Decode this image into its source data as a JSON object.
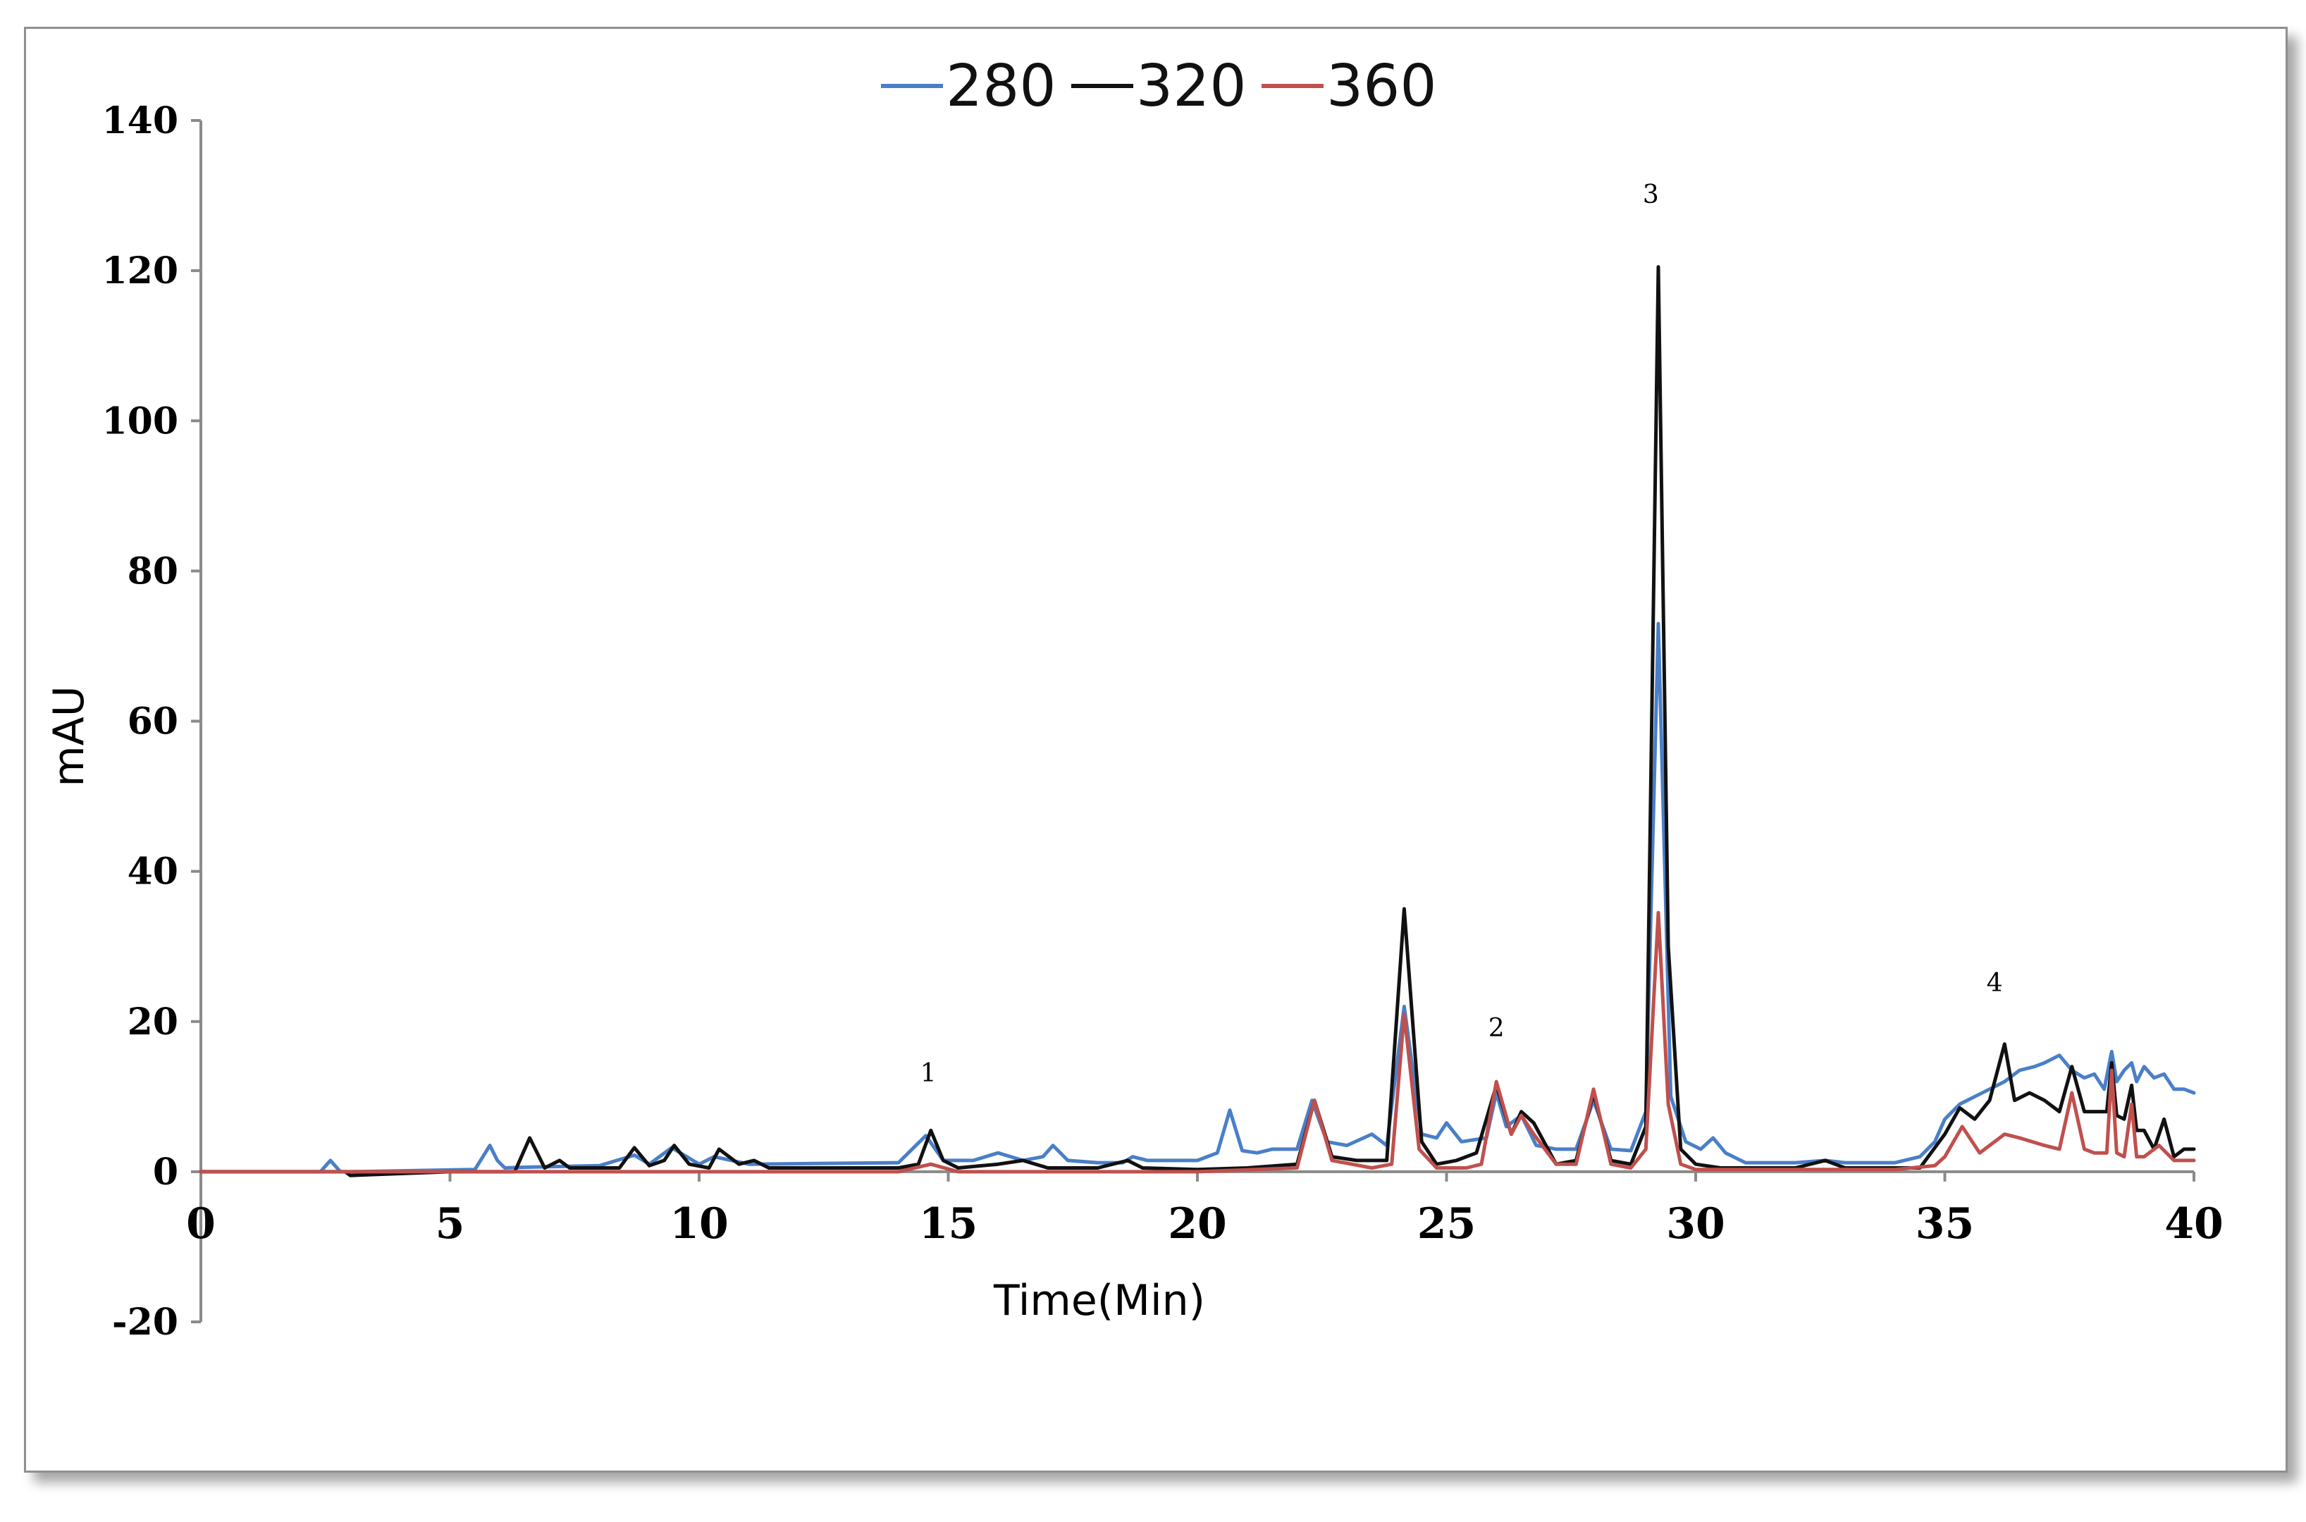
{
  "chart_data": {
    "type": "line",
    "title": "",
    "xlabel": "Time(Min)",
    "ylabel": "mAU",
    "xlim": [
      0,
      40
    ],
    "ylim": [
      -20,
      140
    ],
    "xticks": [
      0,
      5,
      10,
      15,
      20,
      25,
      30,
      35,
      40
    ],
    "yticks": [
      -20,
      0,
      20,
      40,
      60,
      80,
      100,
      120,
      140
    ],
    "grid": false,
    "legend": "top-center",
    "series": [
      {
        "name": "280",
        "color": "#4a7fc8",
        "x": [
          0,
          2.4,
          2.6,
          2.8,
          3.0,
          5.5,
          5.8,
          5.95,
          6.1,
          6.5,
          8.0,
          8.7,
          9.0,
          9.45,
          10.0,
          10.3,
          11.0,
          14.0,
          14.55,
          14.9,
          15.5,
          16.0,
          16.5,
          16.9,
          17.1,
          17.4,
          18.0,
          18.5,
          18.7,
          19.0,
          20.0,
          20.4,
          20.65,
          20.9,
          21.2,
          21.5,
          22.0,
          22.3,
          22.6,
          23.0,
          23.5,
          23.8,
          24.15,
          24.5,
          24.8,
          25.0,
          25.3,
          25.8,
          26.0,
          26.2,
          26.5,
          26.8,
          27.2,
          27.6,
          27.95,
          28.3,
          28.7,
          29.0,
          29.25,
          29.5,
          29.8,
          30.1,
          30.35,
          30.6,
          31.0,
          32.0,
          32.6,
          33.0,
          34.0,
          34.5,
          34.8,
          35.0,
          35.3,
          35.6,
          35.9,
          36.2,
          36.5,
          36.8,
          37.0,
          37.3,
          37.55,
          37.8,
          38.0,
          38.2,
          38.35,
          38.45,
          38.6,
          38.75,
          38.85,
          39.0,
          39.2,
          39.4,
          39.6,
          39.8,
          40.0
        ],
        "values": [
          0,
          0,
          1.5,
          0,
          0,
          0.3,
          3.5,
          1.5,
          0.5,
          0.6,
          0.8,
          2.2,
          1.0,
          3.2,
          1.0,
          2.0,
          1.0,
          1.2,
          4.8,
          1.5,
          1.5,
          2.5,
          1.5,
          2.0,
          3.5,
          1.5,
          1.2,
          1.2,
          2.0,
          1.5,
          1.5,
          2.5,
          8.2,
          2.8,
          2.5,
          3.0,
          3.0,
          9.5,
          4.0,
          3.5,
          5.0,
          3.5,
          22.0,
          5.0,
          4.5,
          6.5,
          4.0,
          4.5,
          10.5,
          6.0,
          7.5,
          3.5,
          3.0,
          3.0,
          9.5,
          3.0,
          2.8,
          8.0,
          73.0,
          10.0,
          4.0,
          3.0,
          4.5,
          2.5,
          1.2,
          1.2,
          1.5,
          1.2,
          1.2,
          2.0,
          4.0,
          7.0,
          9.0,
          10.0,
          11.0,
          12.0,
          13.5,
          14.0,
          14.5,
          15.5,
          13.5,
          12.5,
          13.0,
          11.0,
          16.0,
          12.0,
          13.5,
          14.5,
          12.0,
          14.0,
          12.5,
          13.0,
          11.0,
          11.0,
          10.5
        ]
      },
      {
        "name": "320",
        "color": "#111111",
        "x": [
          0,
          2.9,
          3.0,
          5.0,
          6.3,
          6.6,
          6.9,
          7.2,
          7.4,
          8.4,
          8.7,
          9.0,
          9.3,
          9.5,
          9.8,
          10.2,
          10.4,
          10.8,
          11.1,
          11.4,
          12.0,
          14.0,
          14.4,
          14.65,
          14.9,
          15.2,
          16.0,
          16.5,
          17.0,
          18.0,
          18.6,
          18.9,
          20.0,
          21.0,
          22.0,
          22.35,
          22.7,
          23.2,
          23.8,
          24.15,
          24.5,
          24.8,
          25.2,
          25.6,
          26.0,
          26.3,
          26.5,
          26.75,
          27.2,
          27.6,
          27.95,
          28.3,
          28.7,
          29.0,
          29.25,
          29.45,
          29.7,
          30.0,
          30.5,
          31.0,
          32.0,
          32.6,
          33.0,
          34.0,
          34.5,
          35.0,
          35.3,
          35.6,
          35.9,
          36.2,
          36.4,
          36.7,
          37.0,
          37.3,
          37.55,
          37.8,
          38.0,
          38.25,
          38.35,
          38.45,
          38.6,
          38.75,
          38.85,
          39.0,
          39.2,
          39.4,
          39.6,
          39.8,
          40.0
        ],
        "values": [
          0,
          0,
          -0.5,
          0,
          0,
          4.5,
          0.5,
          1.5,
          0.5,
          0.5,
          3.2,
          0.8,
          1.5,
          3.5,
          1.0,
          0.5,
          3.0,
          1.0,
          1.5,
          0.5,
          0.5,
          0.5,
          1.0,
          5.5,
          1.5,
          0.5,
          1.0,
          1.5,
          0.5,
          0.5,
          1.5,
          0.5,
          0.3,
          0.5,
          1.0,
          9.5,
          2.0,
          1.5,
          1.5,
          35.0,
          4.0,
          1.0,
          1.5,
          2.5,
          11.5,
          5.0,
          8.0,
          6.5,
          1.0,
          1.5,
          10.5,
          1.5,
          1.0,
          6.0,
          120.5,
          30.0,
          3.0,
          1.0,
          0.5,
          0.5,
          0.5,
          1.5,
          0.5,
          0.5,
          0.5,
          5.0,
          8.5,
          7.0,
          9.5,
          17.0,
          9.5,
          10.5,
          9.5,
          8.0,
          14.0,
          8.0,
          8.0,
          8.0,
          14.5,
          7.5,
          7.0,
          11.5,
          5.5,
          5.5,
          3.0,
          7.0,
          2.0,
          3.0,
          3.0
        ]
      },
      {
        "name": "360",
        "color": "#c0504d",
        "x": [
          0,
          14.0,
          14.65,
          15.2,
          20.0,
          22.0,
          22.35,
          22.7,
          23.5,
          23.9,
          24.15,
          24.45,
          24.8,
          25.4,
          25.7,
          26.0,
          26.3,
          26.5,
          26.75,
          27.2,
          27.6,
          27.95,
          28.3,
          28.7,
          29.0,
          29.25,
          29.45,
          29.7,
          30.0,
          30.5,
          34.0,
          34.8,
          35.0,
          35.35,
          35.7,
          35.9,
          36.2,
          36.5,
          37.0,
          37.3,
          37.55,
          37.8,
          38.0,
          38.25,
          38.35,
          38.45,
          38.6,
          38.75,
          38.85,
          39.0,
          39.3,
          39.6,
          40.0
        ],
        "values": [
          0,
          0,
          1.0,
          0,
          0,
          0.5,
          9.5,
          1.5,
          0.5,
          1.0,
          21.0,
          3.0,
          0.5,
          0.5,
          1.0,
          12.0,
          5.0,
          7.5,
          5.0,
          1.0,
          1.0,
          11.0,
          1.0,
          0.5,
          3.0,
          34.5,
          9.0,
          1.0,
          0.3,
          0.3,
          0.3,
          0.8,
          2.0,
          6.0,
          2.5,
          3.5,
          5.0,
          4.5,
          3.5,
          3.0,
          10.5,
          3.0,
          2.5,
          2.5,
          13.5,
          2.5,
          2.0,
          9.0,
          2.0,
          2.0,
          3.5,
          1.5,
          1.5
        ]
      }
    ],
    "annotations": [
      {
        "text": "1",
        "x": 14.6,
        "y": 12
      },
      {
        "text": "2",
        "x": 26.0,
        "y": 18
      },
      {
        "text": "3",
        "x": 29.1,
        "y": 129
      },
      {
        "text": "4",
        "x": 36.0,
        "y": 24
      }
    ]
  }
}
